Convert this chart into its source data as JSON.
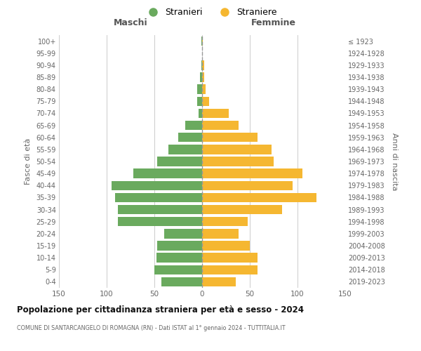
{
  "age_groups": [
    "0-4",
    "5-9",
    "10-14",
    "15-19",
    "20-24",
    "25-29",
    "30-34",
    "35-39",
    "40-44",
    "45-49",
    "50-54",
    "55-59",
    "60-64",
    "65-69",
    "70-74",
    "75-79",
    "80-84",
    "85-89",
    "90-94",
    "95-99",
    "100+"
  ],
  "birth_years": [
    "2019-2023",
    "2014-2018",
    "2009-2013",
    "2004-2008",
    "1999-2003",
    "1994-1998",
    "1989-1993",
    "1984-1988",
    "1979-1983",
    "1974-1978",
    "1969-1973",
    "1964-1968",
    "1959-1963",
    "1954-1958",
    "1949-1953",
    "1944-1948",
    "1939-1943",
    "1934-1938",
    "1929-1933",
    "1924-1928",
    "≤ 1923"
  ],
  "males": [
    43,
    50,
    48,
    47,
    40,
    88,
    88,
    91,
    95,
    72,
    47,
    35,
    25,
    18,
    4,
    5,
    5,
    2,
    1,
    0,
    1
  ],
  "females": [
    35,
    58,
    58,
    50,
    38,
    48,
    84,
    120,
    95,
    105,
    75,
    73,
    58,
    38,
    28,
    7,
    4,
    2,
    2,
    0,
    1
  ],
  "male_color": "#6aaa5e",
  "female_color": "#f5b731",
  "center_line_color": "#999999",
  "grid_color": "#cccccc",
  "title": "Popolazione per cittadinanza straniera per età e sesso - 2024",
  "subtitle": "COMUNE DI SANTARCANGELO DI ROMAGNA (RN) - Dati ISTAT al 1° gennaio 2024 - TUTTITALIA.IT",
  "ylabel_left": "Fasce di età",
  "ylabel_right": "Anni di nascita",
  "header_left": "Maschi",
  "header_right": "Femmine",
  "legend_m": "Stranieri",
  "legend_f": "Straniere",
  "xlim": 150
}
